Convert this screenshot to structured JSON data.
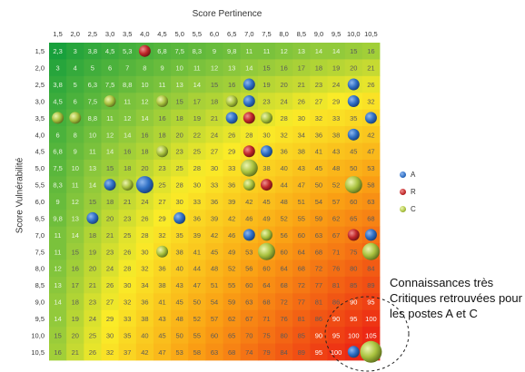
{
  "chart_data": {
    "type": "heatmap",
    "title": "",
    "xlabel": "Score Pertinence",
    "ylabel": "Score Vulnérabilité",
    "x_ticks": [
      "1,5",
      "2,0",
      "2,5",
      "3,0",
      "3,5",
      "4,0",
      "4,5",
      "5,0",
      "5,5",
      "6,0",
      "6,5",
      "7,0",
      "7,5",
      "8,0",
      "8,5",
      "9,0",
      "9,5",
      "10,0",
      "10,5"
    ],
    "y_ticks": [
      "1,5",
      "2,0",
      "2,5",
      "3,0",
      "3,5",
      "4,0",
      "4,5",
      "5,0",
      "5,5",
      "6,0",
      "6,5",
      "7,0",
      "7,5",
      "8,0",
      "8,5",
      "9,0",
      "9,5",
      "10,0",
      "10,5"
    ],
    "cell_values": [
      [
        "2,3",
        "3",
        "3,8",
        "4,5",
        "5,3",
        "6",
        "6,8",
        "7,5",
        "8,3",
        "9",
        "9,8",
        "11",
        "11",
        "12",
        "13",
        "14",
        "14",
        "15",
        "16"
      ],
      [
        "3",
        "4",
        "5",
        "6",
        "7",
        "8",
        "9",
        "10",
        "11",
        "12",
        "13",
        "14",
        "15",
        "16",
        "17",
        "18",
        "19",
        "20",
        "21"
      ],
      [
        "3,8",
        "5",
        "6,3",
        "7,5",
        "8,8",
        "10",
        "11",
        "13",
        "14",
        "15",
        "16",
        "18",
        "19",
        "20",
        "21",
        "23",
        "24",
        "25",
        "26"
      ],
      [
        "4,5",
        "6",
        "7,5",
        "9",
        "11",
        "12",
        "14",
        "15",
        "17",
        "18",
        "20",
        "21",
        "23",
        "24",
        "26",
        "27",
        "29",
        "30",
        "32"
      ],
      [
        "5,3",
        "7",
        "8,8",
        "11",
        "12",
        "14",
        "16",
        "18",
        "19",
        "21",
        "23",
        "25",
        "26",
        "28",
        "30",
        "32",
        "33",
        "35",
        "37"
      ],
      [
        "6",
        "8",
        "10",
        "12",
        "14",
        "16",
        "18",
        "20",
        "22",
        "24",
        "26",
        "28",
        "30",
        "32",
        "34",
        "36",
        "38",
        "40",
        "42"
      ],
      [
        "6,8",
        "9",
        "11",
        "14",
        "16",
        "18",
        "20",
        "23",
        "25",
        "27",
        "29",
        "32",
        "34",
        "36",
        "38",
        "41",
        "43",
        "45",
        "47"
      ],
      [
        "7,5",
        "10",
        "13",
        "15",
        "18",
        "20",
        "23",
        "25",
        "28",
        "30",
        "33",
        "35",
        "38",
        "40",
        "43",
        "45",
        "48",
        "50",
        "53"
      ],
      [
        "8,3",
        "11",
        "14",
        "17",
        "19",
        "22",
        "25",
        "28",
        "30",
        "33",
        "36",
        "39",
        "41",
        "44",
        "47",
        "50",
        "52",
        "55",
        "58"
      ],
      [
        "9",
        "12",
        "15",
        "18",
        "21",
        "24",
        "27",
        "30",
        "33",
        "36",
        "39",
        "42",
        "45",
        "48",
        "51",
        "54",
        "57",
        "60",
        "63"
      ],
      [
        "9,8",
        "13",
        "16",
        "20",
        "23",
        "26",
        "29",
        "33",
        "36",
        "39",
        "42",
        "46",
        "49",
        "52",
        "55",
        "59",
        "62",
        "65",
        "68"
      ],
      [
        "11",
        "14",
        "18",
        "21",
        "25",
        "28",
        "32",
        "35",
        "39",
        "42",
        "46",
        "49",
        "53",
        "56",
        "60",
        "63",
        "67",
        "70",
        "74"
      ],
      [
        "11",
        "15",
        "19",
        "23",
        "26",
        "30",
        "34",
        "38",
        "41",
        "45",
        "49",
        "53",
        "56",
        "60",
        "64",
        "68",
        "71",
        "75",
        "79"
      ],
      [
        "12",
        "16",
        "20",
        "24",
        "28",
        "32",
        "36",
        "40",
        "44",
        "48",
        "52",
        "56",
        "60",
        "64",
        "68",
        "72",
        "76",
        "80",
        "84"
      ],
      [
        "13",
        "17",
        "21",
        "26",
        "30",
        "34",
        "38",
        "43",
        "47",
        "51",
        "55",
        "60",
        "64",
        "68",
        "72",
        "77",
        "81",
        "85",
        "89"
      ],
      [
        "14",
        "18",
        "23",
        "27",
        "32",
        "36",
        "41",
        "45",
        "50",
        "54",
        "59",
        "63",
        "68",
        "72",
        "77",
        "81",
        "86",
        "90",
        "95"
      ],
      [
        "14",
        "19",
        "24",
        "29",
        "33",
        "38",
        "43",
        "48",
        "52",
        "57",
        "62",
        "67",
        "71",
        "76",
        "81",
        "86",
        "90",
        "95",
        "100"
      ],
      [
        "15",
        "20",
        "25",
        "30",
        "35",
        "40",
        "45",
        "50",
        "55",
        "60",
        "65",
        "70",
        "75",
        "80",
        "85",
        "90",
        "95",
        "100",
        "105"
      ],
      [
        "16",
        "21",
        "26",
        "32",
        "37",
        "42",
        "47",
        "53",
        "58",
        "63",
        "68",
        "74",
        "79",
        "84",
        "89",
        "95",
        "100",
        "105",
        "110"
      ]
    ],
    "bubbles": [
      {
        "series": "R",
        "x": "4,0",
        "y": "1,5",
        "size": 1
      },
      {
        "series": "A",
        "x": "7,0",
        "y": "2,5",
        "size": 1
      },
      {
        "series": "A",
        "x": "10,0",
        "y": "2,5",
        "size": 1
      },
      {
        "series": "C",
        "x": "3,0",
        "y": "3,0",
        "size": 1
      },
      {
        "series": "C",
        "x": "4,5",
        "y": "3,0",
        "size": 1
      },
      {
        "series": "C",
        "x": "6,5",
        "y": "3,0",
        "size": 1
      },
      {
        "series": "A",
        "x": "7,0",
        "y": "3,0",
        "size": 1
      },
      {
        "series": "A",
        "x": "10,0",
        "y": "3,0",
        "size": 1
      },
      {
        "series": "C",
        "x": "1,5",
        "y": "3,5",
        "size": 1
      },
      {
        "series": "C",
        "x": "2,0",
        "y": "3,5",
        "size": 1
      },
      {
        "series": "A",
        "x": "6,5",
        "y": "3,5",
        "size": 1
      },
      {
        "series": "R",
        "x": "7,0",
        "y": "3,5",
        "size": 1
      },
      {
        "series": "C",
        "x": "7,5",
        "y": "3,5",
        "size": 1
      },
      {
        "series": "A",
        "x": "10,5",
        "y": "3,5",
        "size": 1
      },
      {
        "series": "A",
        "x": "10,0",
        "y": "4,0",
        "size": 1
      },
      {
        "series": "C",
        "x": "4,5",
        "y": "4,5",
        "size": 1
      },
      {
        "series": "R",
        "x": "7,0",
        "y": "4,5",
        "size": 1
      },
      {
        "series": "A",
        "x": "7,5",
        "y": "4,5",
        "size": 1
      },
      {
        "series": "C",
        "x": "7,0",
        "y": "5,0",
        "size": 2
      },
      {
        "series": "A",
        "x": "3,0",
        "y": "5,5",
        "size": 1
      },
      {
        "series": "C",
        "x": "3,5",
        "y": "5,5",
        "size": 1
      },
      {
        "series": "A",
        "x": "4,0",
        "y": "5,5",
        "size": 2
      },
      {
        "series": "C",
        "x": "7,0",
        "y": "5,5",
        "size": 1
      },
      {
        "series": "R",
        "x": "7,5",
        "y": "5,5",
        "size": 1
      },
      {
        "series": "C",
        "x": "10,0",
        "y": "5,5",
        "size": 2
      },
      {
        "series": "A",
        "x": "2,5",
        "y": "6,5",
        "size": 1
      },
      {
        "series": "A",
        "x": "5,0",
        "y": "6,5",
        "size": 1
      },
      {
        "series": "A",
        "x": "7,0",
        "y": "7,0",
        "size": 1
      },
      {
        "series": "C",
        "x": "7,5",
        "y": "7,0",
        "size": 1
      },
      {
        "series": "R",
        "x": "10,0",
        "y": "7,0",
        "size": 1
      },
      {
        "series": "A",
        "x": "10,5",
        "y": "7,0",
        "size": 1
      },
      {
        "series": "C",
        "x": "4,5",
        "y": "7,5",
        "size": 1
      },
      {
        "series": "C",
        "x": "7,5",
        "y": "7,5",
        "size": 2
      },
      {
        "series": "C",
        "x": "10,5",
        "y": "7,5",
        "size": 2
      },
      {
        "series": "A",
        "x": "10,0",
        "y": "10,5",
        "size": 1
      },
      {
        "series": "C",
        "x": "10,5",
        "y": "10,5",
        "size": 3
      }
    ],
    "legend": {
      "placement": "right",
      "entries": [
        {
          "name": "A",
          "color": "#2f6fc4"
        },
        {
          "name": "R",
          "color": "#c0282a"
        },
        {
          "name": "C",
          "color": "#a9c23f"
        }
      ]
    },
    "annotation": "Connaissances très Critiques retrouvées pour les postes A et C"
  }
}
